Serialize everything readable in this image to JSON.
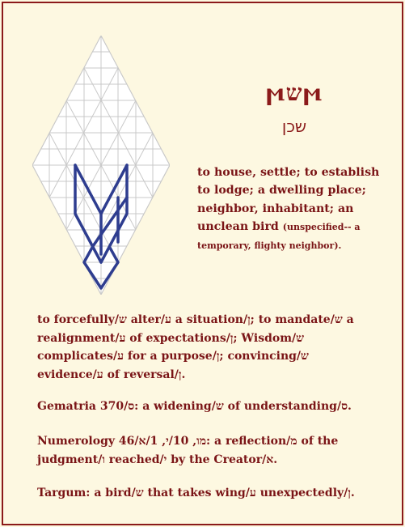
{
  "word": {
    "paleo": "ϻשϻ",
    "hebrew": "שכן"
  },
  "definition": {
    "main": "to house, settle; to establish to lodge; a dwelling place; neighbor, inhabitant; an unclean bird",
    "note": "(unspecified-- a temporary, flighty neighbor)."
  },
  "paragraphs": {
    "meaning": "to forcefully/ש alter/ע a situation/ן; to mandate/ש a realignment/ע of expectations/ן; Wisdom/ש complicates/ע for a purpose/ן; convincing/ש evidence/ע of reversal/ן.",
    "gematria": "Gematria 370/ס: a widening/ש of understanding/ס.",
    "numerology": "Numerology 46/מו, 10/י, 1/א: a reflection/מ of the judgment/ו reached/י by the Creator/א.",
    "targum": "Targum: a bird/ש that takes wing/ע unexpectedly/ן."
  },
  "colors": {
    "text": "#7a1416",
    "border": "#8b1a1a",
    "background": "#fdf8e1",
    "grid": "#c9c9c9",
    "glyph": "#2e3d8f"
  }
}
